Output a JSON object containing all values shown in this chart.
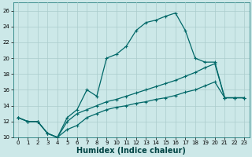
{
  "xlabel": "Humidex (Indice chaleur)",
  "bg_color": "#cce8e8",
  "grid_color": "#aacccc",
  "line_color": "#006868",
  "xlim": [
    -0.5,
    23.5
  ],
  "ylim": [
    10,
    27
  ],
  "xticks": [
    0,
    1,
    2,
    3,
    4,
    5,
    6,
    7,
    8,
    9,
    10,
    11,
    12,
    13,
    14,
    15,
    16,
    17,
    18,
    19,
    20,
    21,
    22,
    23
  ],
  "yticks": [
    10,
    12,
    14,
    16,
    18,
    20,
    22,
    24,
    26
  ],
  "line1_x": [
    0,
    1,
    2,
    3,
    4,
    5,
    6,
    7,
    8,
    9,
    10,
    11,
    12,
    13,
    14,
    15,
    16,
    17,
    18,
    19,
    20,
    21,
    22,
    23
  ],
  "line1_y": [
    12.5,
    12.0,
    12.0,
    10.5,
    10.0,
    12.5,
    13.5,
    16.0,
    15.2,
    20.0,
    20.5,
    21.5,
    23.5,
    24.5,
    24.8,
    25.3,
    25.7,
    23.5,
    20.0,
    19.5,
    19.5,
    15.0,
    15.0,
    15.0
  ],
  "line2_x": [
    0,
    1,
    2,
    3,
    4,
    5,
    6,
    7,
    8,
    9,
    10,
    11,
    12,
    13,
    14,
    15,
    16,
    17,
    18,
    19,
    20,
    21,
    22,
    23
  ],
  "line2_y": [
    12.5,
    12.0,
    12.0,
    10.5,
    10.0,
    12.0,
    13.0,
    13.5,
    14.0,
    14.5,
    14.8,
    15.2,
    15.6,
    16.0,
    16.4,
    16.8,
    17.2,
    17.7,
    18.2,
    18.8,
    19.3,
    15.0,
    15.0,
    15.0
  ],
  "line3_x": [
    0,
    1,
    2,
    3,
    4,
    5,
    6,
    7,
    8,
    9,
    10,
    11,
    12,
    13,
    14,
    15,
    16,
    17,
    18,
    19,
    20,
    21,
    22,
    23
  ],
  "line3_y": [
    12.5,
    12.0,
    12.0,
    10.5,
    10.0,
    11.0,
    11.5,
    12.5,
    13.0,
    13.5,
    13.8,
    14.0,
    14.3,
    14.5,
    14.8,
    15.0,
    15.3,
    15.7,
    16.0,
    16.5,
    17.0,
    15.0,
    15.0,
    15.0
  ],
  "xlabel_fontsize": 7,
  "xlabel_color": "#004444",
  "tick_fontsize": 5,
  "lw": 0.9,
  "ms": 2.5,
  "mew": 0.8
}
